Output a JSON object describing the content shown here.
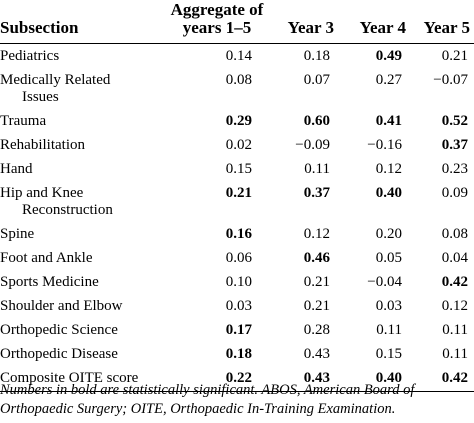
{
  "table": {
    "headers": {
      "subsection": "Subsection",
      "aggregate_line1": "Aggregate of",
      "aggregate_line2": "years 1–5",
      "year3": "Year 3",
      "year4": "Year 4",
      "year5": "Year 5"
    },
    "rows": [
      {
        "subsection": "Pediatrics",
        "subsection_cont": "",
        "aggregate": "0.14",
        "year3": "0.18",
        "year4": "0.49",
        "year5": "0.21",
        "bold": [
          false,
          false,
          true,
          false
        ]
      },
      {
        "subsection": "Medically Related",
        "subsection_cont": "Issues",
        "aggregate": "0.08",
        "year3": "0.07",
        "year4": "0.27",
        "year5": "−0.07",
        "bold": [
          false,
          false,
          false,
          false
        ]
      },
      {
        "subsection": "Trauma",
        "subsection_cont": "",
        "aggregate": "0.29",
        "year3": "0.60",
        "year4": "0.41",
        "year5": "0.52",
        "bold": [
          true,
          true,
          true,
          true
        ]
      },
      {
        "subsection": "Rehabilitation",
        "subsection_cont": "",
        "aggregate": "0.02",
        "year3": "−0.09",
        "year4": "−0.16",
        "year5": "0.37",
        "bold": [
          false,
          false,
          false,
          true
        ]
      },
      {
        "subsection": "Hand",
        "subsection_cont": "",
        "aggregate": "0.15",
        "year3": "0.11",
        "year4": "0.12",
        "year5": "0.23",
        "bold": [
          false,
          false,
          false,
          false
        ]
      },
      {
        "subsection": "Hip and Knee",
        "subsection_cont": "Reconstruction",
        "aggregate": "0.21",
        "year3": "0.37",
        "year4": "0.40",
        "year5": "0.09",
        "bold": [
          true,
          true,
          true,
          false
        ]
      },
      {
        "subsection": "Spine",
        "subsection_cont": "",
        "aggregate": "0.16",
        "year3": "0.12",
        "year4": "0.20",
        "year5": "0.08",
        "bold": [
          true,
          false,
          false,
          false
        ]
      },
      {
        "subsection": "Foot and Ankle",
        "subsection_cont": "",
        "aggregate": "0.06",
        "year3": "0.46",
        "year4": "0.05",
        "year5": "0.04",
        "bold": [
          false,
          true,
          false,
          false
        ]
      },
      {
        "subsection": "Sports Medicine",
        "subsection_cont": "",
        "aggregate": "0.10",
        "year3": "0.21",
        "year4": "−0.04",
        "year5": "0.42",
        "bold": [
          false,
          false,
          false,
          true
        ]
      },
      {
        "subsection": "Shoulder and Elbow",
        "subsection_cont": "",
        "aggregate": "0.03",
        "year3": "0.21",
        "year4": "0.03",
        "year5": "0.12",
        "bold": [
          false,
          false,
          false,
          false
        ]
      },
      {
        "subsection": "Orthopedic Science",
        "subsection_cont": "",
        "aggregate": "0.17",
        "year3": "0.28",
        "year4": "0.11",
        "year5": "0.11",
        "bold": [
          true,
          false,
          false,
          false
        ]
      },
      {
        "subsection": "Orthopedic Disease",
        "subsection_cont": "",
        "aggregate": "0.18",
        "year3": "0.43",
        "year4": "0.15",
        "year5": "0.11",
        "bold": [
          true,
          false,
          false,
          false
        ]
      },
      {
        "subsection": "Composite OITE score",
        "subsection_cont": "",
        "aggregate": "0.22",
        "year3": "0.43",
        "year4": "0.40",
        "year5": "0.42",
        "bold": [
          true,
          true,
          true,
          true
        ]
      }
    ]
  },
  "footnote": "Numbers in bold are statistically significant. ABOS, American Board of Orthopaedic Surgery; OITE, Orthopaedic In-Training Examination."
}
